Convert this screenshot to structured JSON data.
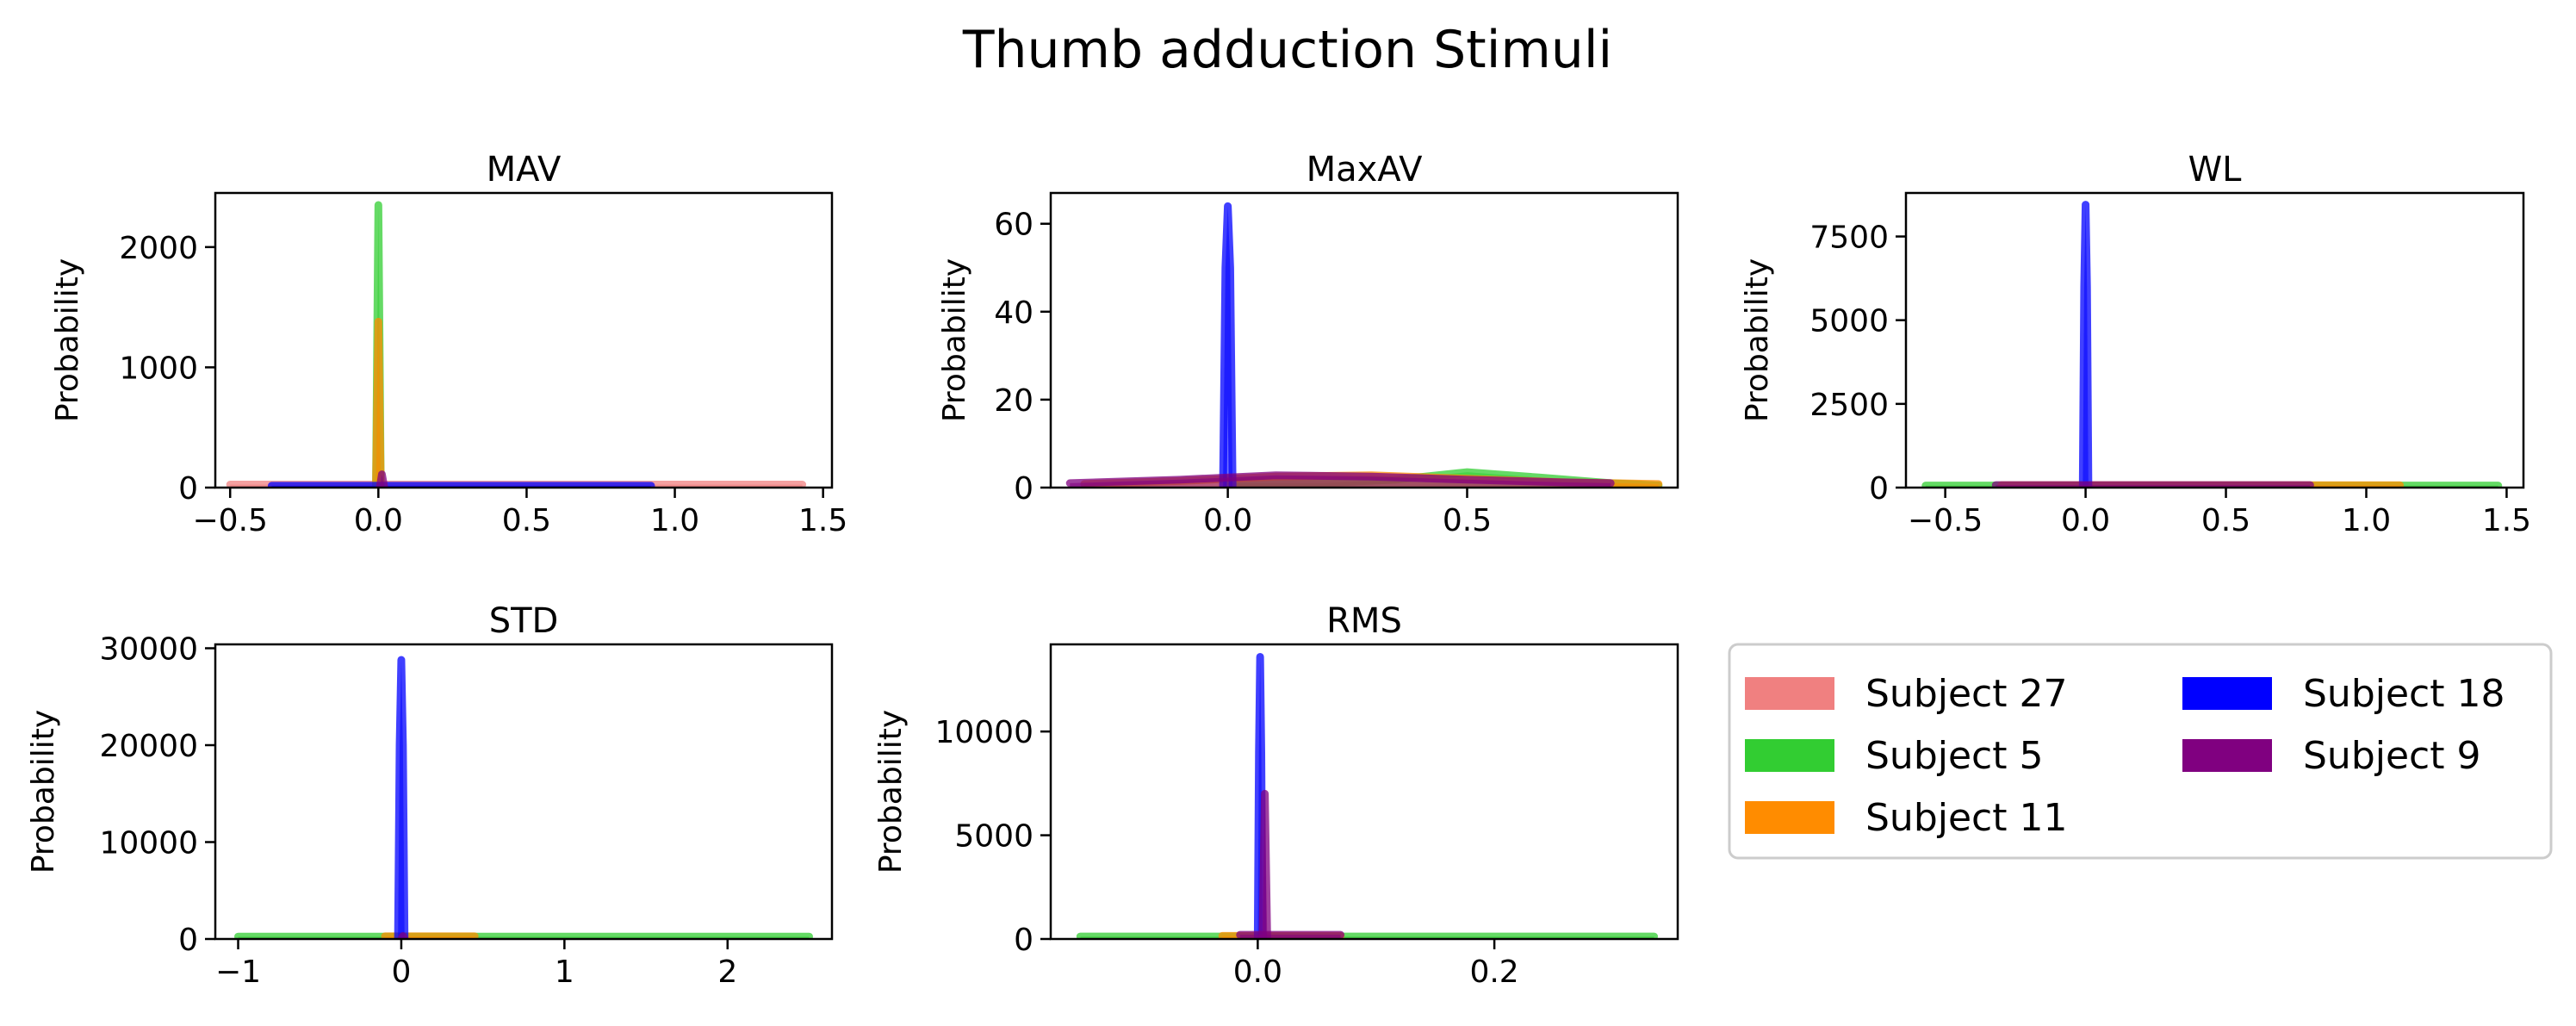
{
  "figure": {
    "title": "Thumb adduction Stimuli"
  },
  "legend": {
    "entries": [
      {
        "label": "Subject 27",
        "color": "#f08080"
      },
      {
        "label": "Subject 5",
        "color": "#32cd32"
      },
      {
        "label": "Subject 11",
        "color": "#ff8c00"
      },
      {
        "label": "Subject 18",
        "color": "#0000ff"
      },
      {
        "label": "Subject 9",
        "color": "#800080"
      }
    ]
  },
  "chart_data": [
    {
      "type": "area",
      "title": "MAV",
      "xlabel": "",
      "ylabel": "Probability",
      "xlim": [
        -0.55,
        1.53
      ],
      "ylim": [
        0,
        2450
      ],
      "xticks": [
        -0.5,
        0.0,
        0.5,
        1.0,
        1.5
      ],
      "xtick_labels": [
        "−0.5",
        "0.0",
        "0.5",
        "1.0",
        "1.5"
      ],
      "yticks": [
        0,
        1000,
        2000
      ],
      "ytick_labels": [
        "0",
        "1000",
        "2000"
      ],
      "grid": false,
      "series": [
        {
          "name": "Subject 27",
          "color": "#f08080",
          "x": [
            -0.5,
            0.0,
            0.5,
            1.0,
            1.43
          ],
          "y": [
            25,
            25,
            25,
            25,
            25
          ]
        },
        {
          "name": "Subject 5",
          "color": "#32cd32",
          "x": [
            -0.008,
            -0.004,
            0.0,
            0.004,
            0.008
          ],
          "y": [
            0,
            1200,
            2350,
            1200,
            0
          ]
        },
        {
          "name": "Subject 11",
          "color": "#ff8c00",
          "x": [
            -0.008,
            -0.004,
            0.0,
            0.004,
            0.008
          ],
          "y": [
            0,
            700,
            1380,
            700,
            0
          ]
        },
        {
          "name": "Subject 18",
          "color": "#0000ff",
          "x": [
            -0.36,
            0.0,
            0.5,
            0.92
          ],
          "y": [
            15,
            15,
            15,
            15
          ]
        },
        {
          "name": "Subject 9",
          "color": "#800080",
          "x": [
            0.005,
            0.012,
            0.02
          ],
          "y": [
            0,
            110,
            0
          ]
        }
      ]
    },
    {
      "type": "area",
      "title": "MaxAV",
      "xlabel": "",
      "ylabel": "Probability",
      "xlim": [
        -0.37,
        0.94
      ],
      "ylim": [
        0,
        67
      ],
      "xticks": [
        0.0,
        0.5
      ],
      "xtick_labels": [
        "0.0",
        "0.5"
      ],
      "yticks": [
        0,
        20,
        40,
        60
      ],
      "ytick_labels": [
        "0",
        "20",
        "40",
        "60"
      ],
      "grid": false,
      "series": [
        {
          "name": "Subject 5",
          "color": "#32cd32",
          "x": [
            0.0,
            0.2,
            0.35,
            0.5,
            0.65,
            0.8,
            0.9
          ],
          "y": [
            1,
            1,
            1.8,
            3.5,
            2.3,
            1,
            0.5
          ]
        },
        {
          "name": "Subject 11",
          "color": "#ff8c00",
          "x": [
            -0.3,
            -0.1,
            0.1,
            0.3,
            0.5,
            0.7,
            0.9
          ],
          "y": [
            0.8,
            1.5,
            2.5,
            2.8,
            2,
            1.2,
            0.8
          ]
        },
        {
          "name": "Subject 18",
          "color": "#0000ff",
          "x": [
            -0.01,
            -0.005,
            0.0,
            0.005,
            0.01
          ],
          "y": [
            0,
            50,
            64,
            50,
            0
          ]
        },
        {
          "name": "Subject 9",
          "color": "#800080",
          "x": [
            -0.33,
            -0.1,
            0.1,
            0.3,
            0.5,
            0.7,
            0.8
          ],
          "y": [
            1,
            1.8,
            2.8,
            2.5,
            1.8,
            1.2,
            1
          ]
        }
      ]
    },
    {
      "type": "area",
      "title": "WL",
      "xlabel": "",
      "ylabel": "Probability",
      "xlim": [
        -0.64,
        1.56
      ],
      "ylim": [
        0,
        8800
      ],
      "xticks": [
        -0.5,
        0.0,
        0.5,
        1.0,
        1.5
      ],
      "xtick_labels": [
        "−0.5",
        "0.0",
        "0.5",
        "1.0",
        "1.5"
      ],
      "yticks": [
        0,
        2500,
        5000,
        7500
      ],
      "ytick_labels": [
        "0",
        "2500",
        "5000",
        "7500"
      ],
      "grid": false,
      "series": [
        {
          "name": "Subject 5",
          "color": "#32cd32",
          "x": [
            -0.57,
            0.0,
            0.5,
            1.0,
            1.47
          ],
          "y": [
            60,
            60,
            60,
            60,
            60
          ]
        },
        {
          "name": "Subject 11",
          "color": "#ff8c00",
          "x": [
            -0.3,
            0.0,
            0.5,
            1.12
          ],
          "y": [
            70,
            70,
            70,
            70
          ]
        },
        {
          "name": "Subject 18",
          "color": "#0000ff",
          "x": [
            -0.01,
            -0.005,
            0.0,
            0.005,
            0.01
          ],
          "y": [
            0,
            6000,
            8450,
            6000,
            0
          ]
        },
        {
          "name": "Subject 9",
          "color": "#800080",
          "x": [
            -0.32,
            0.0,
            0.5,
            0.8
          ],
          "y": [
            75,
            75,
            75,
            75
          ]
        }
      ]
    },
    {
      "type": "area",
      "title": "STD",
      "xlabel": "",
      "ylabel": "Probability",
      "xlim": [
        -1.14,
        2.64
      ],
      "ylim": [
        0,
        30400
      ],
      "xticks": [
        -1,
        0,
        1,
        2
      ],
      "xtick_labels": [
        "−1",
        "0",
        "1",
        "2"
      ],
      "yticks": [
        0,
        10000,
        20000,
        30000
      ],
      "ytick_labels": [
        "0",
        "10000",
        "20000",
        "30000"
      ],
      "grid": false,
      "series": [
        {
          "name": "Subject 5",
          "color": "#32cd32",
          "x": [
            -1.0,
            0.0,
            1.0,
            2.0,
            2.5
          ],
          "y": [
            250,
            250,
            250,
            250,
            250
          ]
        },
        {
          "name": "Subject 11",
          "color": "#ff8c00",
          "x": [
            -0.1,
            0.0,
            0.2,
            0.45
          ],
          "y": [
            280,
            280,
            280,
            280
          ]
        },
        {
          "name": "Subject 18",
          "color": "#0000ff",
          "x": [
            -0.02,
            -0.01,
            0.0,
            0.01,
            0.02
          ],
          "y": [
            0,
            20000,
            28800,
            20000,
            0
          ]
        },
        {
          "name": "Subject 9",
          "color": "#800080",
          "x": [
            0.0,
            0.01,
            0.02
          ],
          "y": [
            0,
            300,
            0
          ]
        }
      ]
    },
    {
      "type": "area",
      "title": "RMS",
      "xlabel": "",
      "ylabel": "Probability",
      "xlim": [
        -0.175,
        0.355
      ],
      "ylim": [
        0,
        14200
      ],
      "xticks": [
        0.0,
        0.2
      ],
      "xtick_labels": [
        "0.0",
        "0.2"
      ],
      "yticks": [
        0,
        5000,
        10000
      ],
      "ytick_labels": [
        "0",
        "5000",
        "10000"
      ],
      "grid": false,
      "series": [
        {
          "name": "Subject 5",
          "color": "#32cd32",
          "x": [
            -0.15,
            0.0,
            0.2,
            0.335
          ],
          "y": [
            120,
            120,
            120,
            120
          ]
        },
        {
          "name": "Subject 11",
          "color": "#ff8c00",
          "x": [
            -0.03,
            0.0,
            0.07
          ],
          "y": [
            150,
            150,
            150
          ]
        },
        {
          "name": "Subject 18",
          "color": "#0000ff",
          "x": [
            0.0,
            0.001,
            0.002,
            0.003,
            0.004
          ],
          "y": [
            0,
            9000,
            13600,
            9000,
            0
          ]
        },
        {
          "name": "Subject 9",
          "color": "#800080",
          "x": [
            -0.015,
            0.0,
            0.03,
            0.07
          ],
          "y": [
            200,
            200,
            200,
            200
          ]
        },
        {
          "name": "Subject 9",
          "color": "#800080",
          "x": [
            0.004,
            0.006,
            0.008
          ],
          "y": [
            0,
            7000,
            0
          ]
        }
      ]
    }
  ]
}
